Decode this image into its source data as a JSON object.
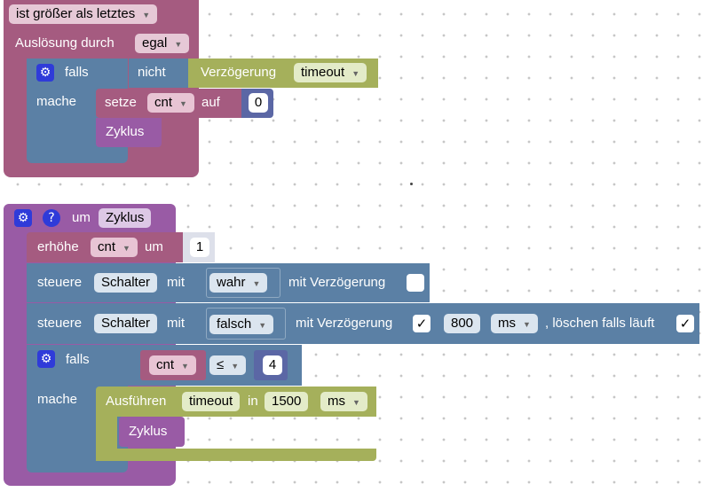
{
  "block1": {
    "condition_dropdown": "ist größer als letztes",
    "trigger_label": "Auslösung durch",
    "trigger_value": "egal",
    "if_label": "falls",
    "do_label": "mache",
    "not_label": "nicht",
    "delay_label": "Verzögerung",
    "delay_value": "timeout",
    "set_label": "setze",
    "set_var": "cnt",
    "set_to_label": "auf",
    "set_value": "0",
    "call_label": "Zyklus"
  },
  "block2": {
    "every_label": "um",
    "func_name": "Zyklus",
    "increment": {
      "label": "erhöhe",
      "var": "cnt",
      "by_label": "um",
      "value": "1"
    },
    "control1": {
      "label": "steuere",
      "device": "Schalter",
      "with_label": "mit",
      "value": "wahr",
      "delay_label": "mit Verzögerung"
    },
    "control2": {
      "label": "steuere",
      "device": "Schalter",
      "with_label": "mit",
      "value": "falsch",
      "delay_label": "mit Verzögerung",
      "delay_check": "✓",
      "delay_value": "800",
      "delay_unit": "ms",
      "clear_label": ", löschen falls läuft",
      "clear_check": "✓"
    },
    "if_label": "falls",
    "do_label": "mache",
    "compare": {
      "var": "cnt",
      "op": "≤",
      "value": "4"
    },
    "execute": {
      "label": "Ausführen",
      "name": "timeout",
      "in_label": "in",
      "value": "1500",
      "unit": "ms"
    },
    "call_label": "Zyklus"
  },
  "colors": {
    "trigger_block": "#a55b80",
    "function_block": "#995ba5",
    "logic_block": "#5b80a5",
    "timer_block": "#a5b05b",
    "number_block": "#5b67a5",
    "gear_icon": "#2f3bd9"
  },
  "icons": {
    "gear": "gear-icon",
    "help": "help-icon",
    "dropdown": "chevron-down-icon"
  }
}
